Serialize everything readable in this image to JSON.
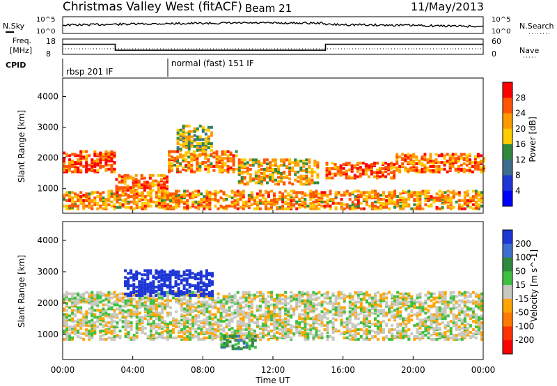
{
  "header": {
    "title": "Christmas Valley West (fitACF)",
    "beam": "Beam 21",
    "date": "11/May/2013"
  },
  "noise_panel": {
    "left_label": "N.Sky",
    "right_label": "N.Search",
    "left_ticks": [
      "10^5",
      "10^0"
    ],
    "right_ticks": [
      "10^5",
      "10^0"
    ]
  },
  "freq_panel": {
    "left_label_1": "Freq.",
    "left_label_2": "[MHz]",
    "right_label": "Nave",
    "left_ticks": [
      "18",
      "8"
    ],
    "right_ticks": [
      "60",
      "0"
    ],
    "freq_steps": [
      {
        "t": 0,
        "v": 14.6
      },
      {
        "t": 3,
        "v": 14.6
      },
      {
        "t": 3,
        "v": 10.7
      },
      {
        "t": 15,
        "v": 10.7
      },
      {
        "t": 15,
        "v": 14.6
      },
      {
        "t": 24,
        "v": 14.6
      }
    ]
  },
  "cpid": {
    "label": "CPID",
    "segments": [
      {
        "start": 0,
        "end": 6,
        "text": "rbsp 201 IF"
      },
      {
        "start": 6,
        "end": 24,
        "text": "normal (fast) 151 IF"
      }
    ]
  },
  "x_axis": {
    "title": "Time UT",
    "ticks": [
      "00:00",
      "04:00",
      "08:00",
      "12:00",
      "16:00",
      "20:00",
      "00:00"
    ],
    "range_hours": [
      0,
      24
    ]
  },
  "chart_data": [
    {
      "type": "heatmap",
      "panel": "power",
      "ylabel": "Slant Range [km]",
      "ylim": [
        200,
        4600
      ],
      "yticks": [
        "1000",
        "2000",
        "3000",
        "4000"
      ],
      "ytick_values": [
        1000,
        2000,
        3000,
        4000
      ],
      "colorbar_label": "Power [dB]",
      "colorbar_ticks": [
        "28",
        "24",
        "20",
        "16",
        "12",
        "8",
        "4"
      ],
      "colorbar_colors": [
        "#ff0000",
        "#ff5500",
        "#ff9a00",
        "#ffcc00",
        "#2f8a3f",
        "#3e6e8c",
        "#1d36d6",
        "#0000ff"
      ],
      "echo_bands": [
        {
          "t0": 0.0,
          "t1": 3.0,
          "r0": 1500,
          "r1": 2200,
          "level": 24
        },
        {
          "t0": 3.0,
          "t1": 6.0,
          "r0": 900,
          "r1": 1400,
          "level": 22
        },
        {
          "t0": 6.0,
          "t1": 10.0,
          "r0": 1500,
          "r1": 2200,
          "level": 20
        },
        {
          "t0": 10.0,
          "t1": 14.5,
          "r0": 1100,
          "r1": 1900,
          "level": 18
        },
        {
          "t0": 15.0,
          "t1": 19.0,
          "r0": 1300,
          "r1": 1800,
          "level": 24
        },
        {
          "t0": 19.0,
          "t1": 24.0,
          "r0": 1500,
          "r1": 2100,
          "level": 22
        },
        {
          "t0": 6.5,
          "t1": 8.5,
          "r0": 2200,
          "r1": 3000,
          "level": 14
        },
        {
          "t0": 0.0,
          "t1": 24.0,
          "r0": 300,
          "r1": 900,
          "level": 20
        }
      ]
    },
    {
      "type": "heatmap",
      "panel": "velocity",
      "ylabel": "Slant Range [km]",
      "ylim": [
        200,
        4600
      ],
      "yticks": [
        "1000",
        "2000",
        "3000",
        "4000"
      ],
      "ytick_values": [
        1000,
        2000,
        3000,
        4000
      ],
      "colorbar_label": "Velocity [m s^-1]",
      "colorbar_ticks": [
        "200",
        "100",
        "50",
        "15",
        "-15",
        "-50",
        "-100",
        "-200"
      ],
      "colorbar_colors": [
        "#1d36d6",
        "#3c6fd0",
        "#2f8a3f",
        "#3fbf3f",
        "#c8c8c0",
        "#ffa500",
        "#ff7a00",
        "#ff3300",
        "#ff0000"
      ],
      "echo_bands": [
        {
          "t0": 0.0,
          "t1": 24.0,
          "r0": 800,
          "r1": 2300,
          "velocity": 0
        },
        {
          "t0": 3.5,
          "t1": 8.5,
          "r0": 2200,
          "r1": 3000,
          "velocity": 150
        },
        {
          "t0": 9.0,
          "t1": 11.0,
          "r0": 500,
          "r1": 900,
          "velocity": 40
        }
      ]
    }
  ]
}
